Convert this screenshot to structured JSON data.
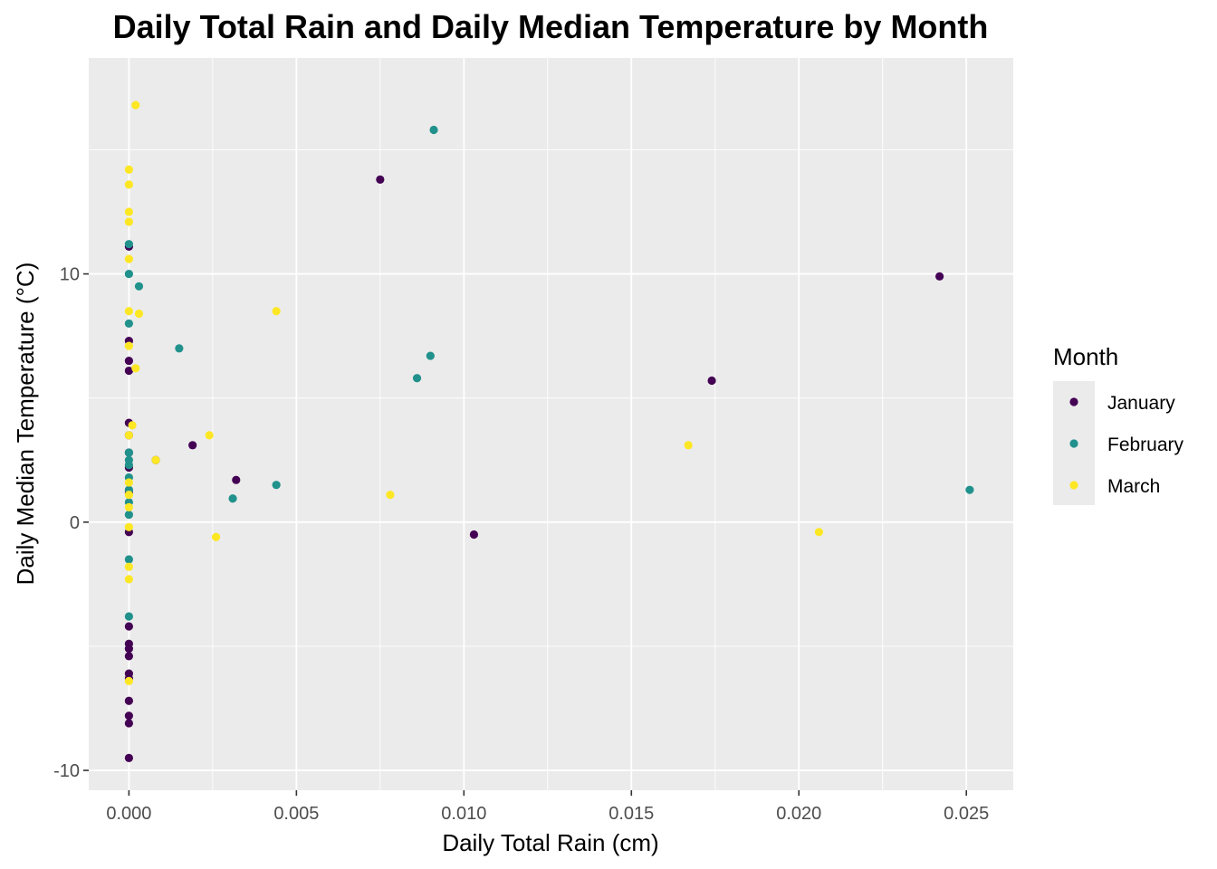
{
  "chart_data": {
    "type": "scatter",
    "title": "Daily Total Rain and Daily Median Temperature by Month",
    "xlabel": "Daily Total Rain (cm)",
    "ylabel": "Daily Median Temperature (°C)",
    "xlim": [
      -0.0012,
      0.0264
    ],
    "ylim": [
      -10.8,
      18.7
    ],
    "xticks": [
      0.0,
      0.005,
      0.01,
      0.015,
      0.02,
      0.025
    ],
    "xtick_labels": [
      "0.000",
      "0.005",
      "0.010",
      "0.015",
      "0.020",
      "0.025"
    ],
    "yticks": [
      -10,
      0,
      10
    ],
    "ytick_labels": [
      "-10",
      "0",
      "10"
    ],
    "grid": true,
    "legend": {
      "title": "Month",
      "position": "right"
    },
    "series": [
      {
        "name": "January",
        "color": "#440154",
        "points": [
          [
            0.0,
            11.1
          ],
          [
            0.0,
            7.3
          ],
          [
            0.0,
            6.5
          ],
          [
            0.0,
            6.1
          ],
          [
            0.0,
            4.0
          ],
          [
            0.0,
            3.5
          ],
          [
            0.0,
            2.8
          ],
          [
            0.0,
            2.2
          ],
          [
            0.0,
            1.2
          ],
          [
            0.0,
            -0.4
          ],
          [
            0.0,
            -4.2
          ],
          [
            0.0,
            -4.9
          ],
          [
            0.0,
            -5.1
          ],
          [
            0.0,
            -5.4
          ],
          [
            0.0,
            -6.1
          ],
          [
            0.0,
            -6.3
          ],
          [
            0.0,
            -7.2
          ],
          [
            0.0,
            -7.8
          ],
          [
            0.0,
            -8.1
          ],
          [
            0.0,
            -9.5
          ],
          [
            0.0008,
            2.5
          ],
          [
            0.0019,
            3.1
          ],
          [
            0.0032,
            1.7
          ],
          [
            0.0075,
            13.8
          ],
          [
            0.0103,
            -0.5
          ],
          [
            0.0174,
            5.7
          ],
          [
            0.0242,
            9.9
          ]
        ]
      },
      {
        "name": "February",
        "color": "#21918c",
        "points": [
          [
            0.0,
            11.2
          ],
          [
            0.0,
            10.0
          ],
          [
            0.0,
            8.0
          ],
          [
            0.0,
            2.8
          ],
          [
            0.0,
            2.5
          ],
          [
            0.0,
            2.3
          ],
          [
            0.0,
            1.8
          ],
          [
            0.0,
            1.3
          ],
          [
            0.0,
            0.8
          ],
          [
            0.0,
            0.3
          ],
          [
            0.0,
            -1.5
          ],
          [
            0.0,
            -3.8
          ],
          [
            0.0003,
            9.5
          ],
          [
            0.0015,
            7.0
          ],
          [
            0.0031,
            0.95
          ],
          [
            0.0044,
            1.5
          ],
          [
            0.0086,
            5.8
          ],
          [
            0.009,
            6.7
          ],
          [
            0.0091,
            15.8
          ],
          [
            0.0251,
            1.3
          ]
        ]
      },
      {
        "name": "March",
        "color": "#fde725",
        "points": [
          [
            0.0,
            14.2
          ],
          [
            0.0,
            13.6
          ],
          [
            0.0,
            12.5
          ],
          [
            0.0,
            12.1
          ],
          [
            0.0,
            10.6
          ],
          [
            0.0,
            8.5
          ],
          [
            0.0,
            7.1
          ],
          [
            0.0,
            3.5
          ],
          [
            0.0,
            1.6
          ],
          [
            0.0,
            1.1
          ],
          [
            0.0,
            0.6
          ],
          [
            0.0,
            -0.2
          ],
          [
            0.0,
            -1.8
          ],
          [
            0.0,
            -2.3
          ],
          [
            0.0,
            -6.4
          ],
          [
            0.0001,
            3.9
          ],
          [
            0.0002,
            16.8
          ],
          [
            0.0002,
            6.2
          ],
          [
            0.0003,
            8.4
          ],
          [
            0.0008,
            2.5
          ],
          [
            0.0024,
            3.5
          ],
          [
            0.0026,
            -0.6
          ],
          [
            0.0044,
            8.5
          ],
          [
            0.0078,
            1.1
          ],
          [
            0.0167,
            3.1
          ],
          [
            0.0206,
            -0.4
          ]
        ]
      }
    ]
  }
}
